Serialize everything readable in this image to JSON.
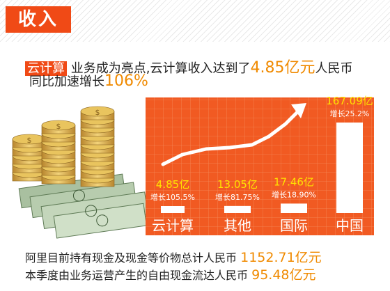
{
  "header": {
    "title": "收入",
    "headline_tag": "云计算",
    "headline_text": "业务成为亮点,云计算收入达到了",
    "headline_value": "4.85亿元",
    "headline_suffix": "人民币",
    "headline2_text": "同比加速增长",
    "headline2_value": "106%"
  },
  "chart_data": {
    "type": "bar",
    "categories": [
      "云计算",
      "其他",
      "国际",
      "中国"
    ],
    "values": [
      4.85,
      13.05,
      17.46,
      167.09
    ],
    "value_labels": [
      "4.85亿",
      "13.05亿",
      "17.46亿",
      "167.09亿"
    ],
    "growth_labels": [
      "增长105.5%",
      "增长81.75%",
      "增长18.90%",
      "增长25.2%"
    ],
    "growth": [
      105.5,
      81.75,
      18.9,
      25.2
    ],
    "unit": "亿元",
    "ylim": [
      0,
      167.09
    ],
    "grid": true,
    "colors": {
      "panel": "#f15a22",
      "bar": "#ffffff",
      "value_text": "#ffe400",
      "growth_text": "#ffffff",
      "category_text": "#ffffff"
    }
  },
  "footer": {
    "line1_text": "阿里目前持有现金及现金等价物总计人民币",
    "line1_value": "1152.71亿元",
    "line2_text": "本季度由业务运营产生的自由现金流达人民币",
    "line2_value": "95.48亿元"
  },
  "decor": {
    "coins_icon": "coin-stack-icon",
    "cash_icon": "banknote-stack-icon",
    "arrow_icon": "growth-arrow-icon"
  }
}
